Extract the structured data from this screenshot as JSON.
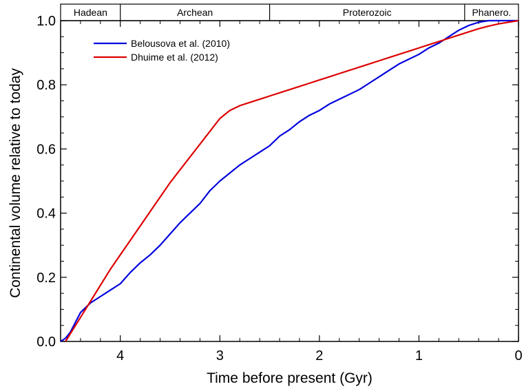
{
  "chart_data": {
    "type": "line",
    "xlabel": "Time before present  (Gyr)",
    "ylabel": "Continental volume relative to today",
    "xlim": [
      4.6,
      0
    ],
    "ylim": [
      0,
      1.0
    ],
    "x_reversed": true,
    "x_ticks": [
      4,
      3,
      2,
      1,
      0
    ],
    "x_tick_labels": [
      "4",
      "3",
      "2",
      "1",
      "0"
    ],
    "y_ticks": [
      0,
      0.2,
      0.4,
      0.6,
      0.8,
      1.0
    ],
    "y_tick_labels": [
      "0.0",
      "0.2",
      "0.4",
      "0.6",
      "0.8",
      "1.0"
    ],
    "grid": false,
    "legend_position": "top-left",
    "eons": [
      {
        "label": "Hadean",
        "start": 4.6,
        "end": 4.0
      },
      {
        "label": "Archean",
        "start": 4.0,
        "end": 2.5
      },
      {
        "label": "Proterozoic",
        "start": 2.5,
        "end": 0.541
      },
      {
        "label": "Phanero.",
        "start": 0.541,
        "end": 0
      }
    ],
    "series": [
      {
        "name": "Belousova et al. (2010)",
        "color": "#0000dd",
        "x": [
          4.6,
          4.55,
          4.5,
          4.45,
          4.4,
          4.3,
          4.2,
          4.1,
          4.0,
          3.9,
          3.8,
          3.7,
          3.6,
          3.5,
          3.4,
          3.3,
          3.2,
          3.1,
          3.0,
          2.9,
          2.8,
          2.7,
          2.6,
          2.5,
          2.4,
          2.3,
          2.2,
          2.1,
          2.0,
          1.9,
          1.8,
          1.7,
          1.6,
          1.5,
          1.4,
          1.3,
          1.2,
          1.1,
          1.0,
          0.9,
          0.8,
          0.7,
          0.6,
          0.5,
          0.4,
          0.3,
          0.2,
          0.1,
          0.0
        ],
        "y": [
          0.0,
          0.01,
          0.03,
          0.06,
          0.09,
          0.12,
          0.14,
          0.16,
          0.18,
          0.215,
          0.245,
          0.27,
          0.3,
          0.335,
          0.37,
          0.4,
          0.43,
          0.47,
          0.5,
          0.525,
          0.55,
          0.57,
          0.59,
          0.61,
          0.64,
          0.66,
          0.685,
          0.705,
          0.72,
          0.74,
          0.755,
          0.77,
          0.785,
          0.805,
          0.825,
          0.845,
          0.865,
          0.88,
          0.895,
          0.915,
          0.93,
          0.95,
          0.97,
          0.985,
          0.995,
          1.0,
          1.0,
          1.0,
          1.0
        ],
        "extra_x": [],
        "note": ""
      },
      {
        "name": "Dhuime et al. (2012)",
        "color": "#dd0000",
        "x": [
          4.55,
          4.5,
          4.4,
          4.3,
          4.2,
          4.1,
          4.0,
          3.9,
          3.8,
          3.7,
          3.6,
          3.5,
          3.4,
          3.3,
          3.2,
          3.1,
          3.0,
          2.9,
          2.8,
          2.7,
          2.6,
          2.5,
          2.4,
          2.3,
          2.2,
          2.1,
          2.0,
          1.9,
          1.8,
          1.7,
          1.6,
          1.5,
          1.4,
          1.3,
          1.2,
          1.1,
          1.0,
          0.9,
          0.8,
          0.7,
          0.6,
          0.5,
          0.4,
          0.3,
          0.2,
          0.1,
          0.0
        ],
        "y": [
          0.0,
          0.025,
          0.075,
          0.125,
          0.175,
          0.225,
          0.27,
          0.315,
          0.36,
          0.405,
          0.45,
          0.495,
          0.535,
          0.575,
          0.615,
          0.655,
          0.695,
          0.72,
          0.735,
          0.745,
          0.755,
          0.765,
          0.775,
          0.785,
          0.795,
          0.805,
          0.815,
          0.825,
          0.835,
          0.845,
          0.855,
          0.865,
          0.875,
          0.885,
          0.895,
          0.905,
          0.915,
          0.925,
          0.935,
          0.945,
          0.955,
          0.965,
          0.975,
          0.983,
          0.99,
          0.995,
          1.0
        ]
      }
    ]
  }
}
